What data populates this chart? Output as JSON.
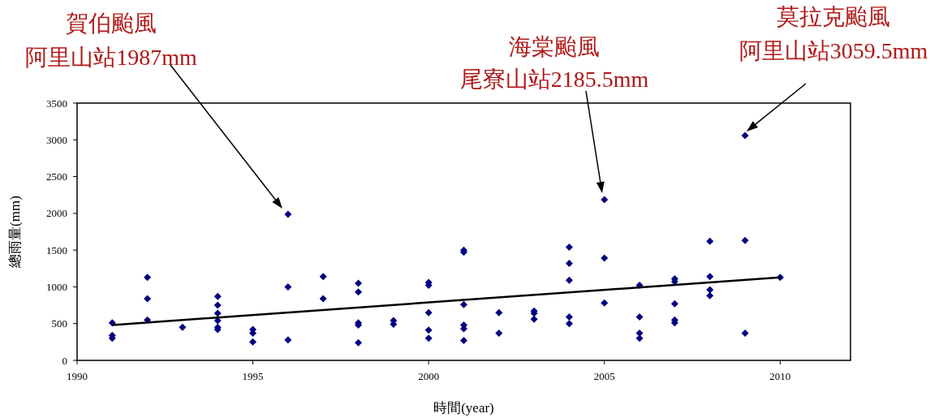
{
  "chart_data": {
    "type": "scatter",
    "xlabel": "時間(year)",
    "ylabel": "總雨量(mm)",
    "xlim": [
      1990,
      2012
    ],
    "xticks": [
      1990,
      1995,
      2000,
      2005,
      2010
    ],
    "ylim": [
      0,
      3500
    ],
    "yticks": [
      0,
      500,
      1000,
      1500,
      2000,
      2500,
      3000,
      3500
    ],
    "grid": false,
    "marker": "diamond",
    "series": [
      {
        "color": "#000080",
        "x": [
          1991,
          1991,
          1991,
          1992,
          1992,
          1992,
          1993,
          1994,
          1994,
          1994,
          1994,
          1994,
          1994,
          1995,
          1995,
          1995,
          1996,
          1996,
          1996,
          1997,
          1997,
          1998,
          1998,
          1998,
          1998,
          1998,
          1999,
          1999,
          2000,
          2000,
          2000,
          2000,
          2000,
          2001,
          2001,
          2001,
          2001,
          2001,
          2001,
          2002,
          2002,
          2003,
          2003,
          2003,
          2004,
          2004,
          2004,
          2004,
          2004,
          2005,
          2005,
          2005,
          2006,
          2006,
          2006,
          2006,
          2007,
          2007,
          2007,
          2007,
          2007,
          2008,
          2008,
          2008,
          2008,
          2009,
          2009,
          2009,
          2010
        ],
        "values": [
          510,
          340,
          300,
          1130,
          840,
          550,
          450,
          870,
          750,
          640,
          540,
          450,
          420,
          420,
          370,
          250,
          1987,
          1000,
          280,
          1140,
          840,
          1050,
          930,
          510,
          480,
          240,
          540,
          490,
          1060,
          1020,
          650,
          410,
          300,
          1500,
          1470,
          760,
          480,
          430,
          270,
          650,
          370,
          670,
          640,
          560,
          1540,
          1320,
          1090,
          590,
          500,
          2185.5,
          1390,
          780,
          1020,
          590,
          370,
          300,
          1110,
          1070,
          770,
          550,
          510,
          1620,
          1140,
          960,
          880,
          3059.5,
          1630,
          370,
          1130
        ]
      },
      {
        "type": "line",
        "color": "#000000",
        "marker": "none",
        "line_style": "solid",
        "x": [
          1991,
          2010
        ],
        "values": [
          480,
          1130
        ]
      }
    ],
    "annotations": [
      "賀伯颱風",
      "阿里山站1987mm",
      "海棠颱風",
      "尾寮山站2185.5mm",
      "莫拉克颱風",
      "阿里山站3059.5mm"
    ]
  }
}
